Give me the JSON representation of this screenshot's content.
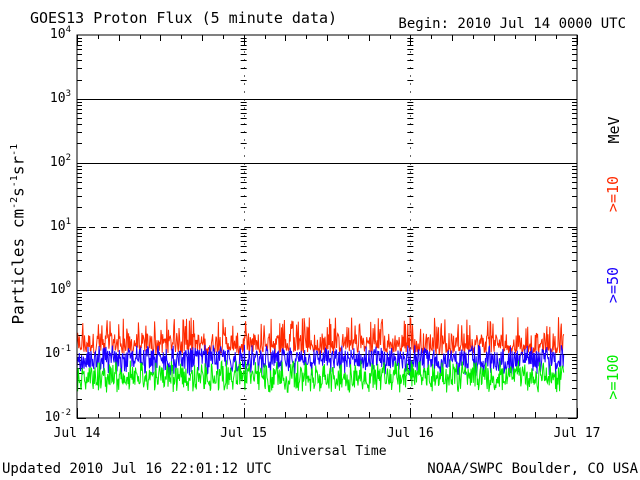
{
  "header": {
    "title": "GOES13 Proton Flux (5 minute data)",
    "begin": "Begin: 2010 Jul 14 0000 UTC"
  },
  "footer": {
    "updated": "Updated 2010 Jul 16 22:01:12 UTC",
    "credit": "NOAA/SWPC Boulder, CO USA"
  },
  "chart_data": {
    "type": "line",
    "title": "GOES13 Proton Flux (5 minute data)",
    "xlabel": "Universal Time",
    "ylabel": "Particles cm-2s-1sr-1",
    "yscale": "log",
    "ylim": [
      0.01,
      10000
    ],
    "xlim_days": [
      0,
      3
    ],
    "x_tick_labels": [
      "Jul 14",
      "Jul 15",
      "Jul 16",
      "Jul 17"
    ],
    "y_tick_labels": [
      {
        "base": "10",
        "exp": "4"
      },
      {
        "base": "10",
        "exp": "3"
      },
      {
        "base": "10",
        "exp": "2"
      },
      {
        "base": "10",
        "exp": "1"
      },
      {
        "base": "10",
        "exp": "0"
      },
      {
        "base": "10",
        "exp": "-1"
      },
      {
        "base": "10",
        "exp": "-2"
      }
    ],
    "reference_lines": [
      {
        "value": 1000,
        "style": "solid"
      },
      {
        "value": 100,
        "style": "solid"
      },
      {
        "value": 10,
        "style": "dashed"
      },
      {
        "value": 1,
        "style": "solid"
      },
      {
        "value": 0.1,
        "style": "solid"
      }
    ],
    "data_end_day": 2.92,
    "unit_label": "MeV",
    "series": [
      {
        "name": ">=10",
        "color": "#ff2a00",
        "baseline": 0.15,
        "min": 0.1,
        "max": 0.38
      },
      {
        "name": ">=50",
        "color": "#1a00ff",
        "baseline": 0.085,
        "min": 0.045,
        "max": 0.14
      },
      {
        "name": ">=100",
        "color": "#00ee00",
        "baseline": 0.045,
        "min": 0.025,
        "max": 0.08
      }
    ]
  }
}
